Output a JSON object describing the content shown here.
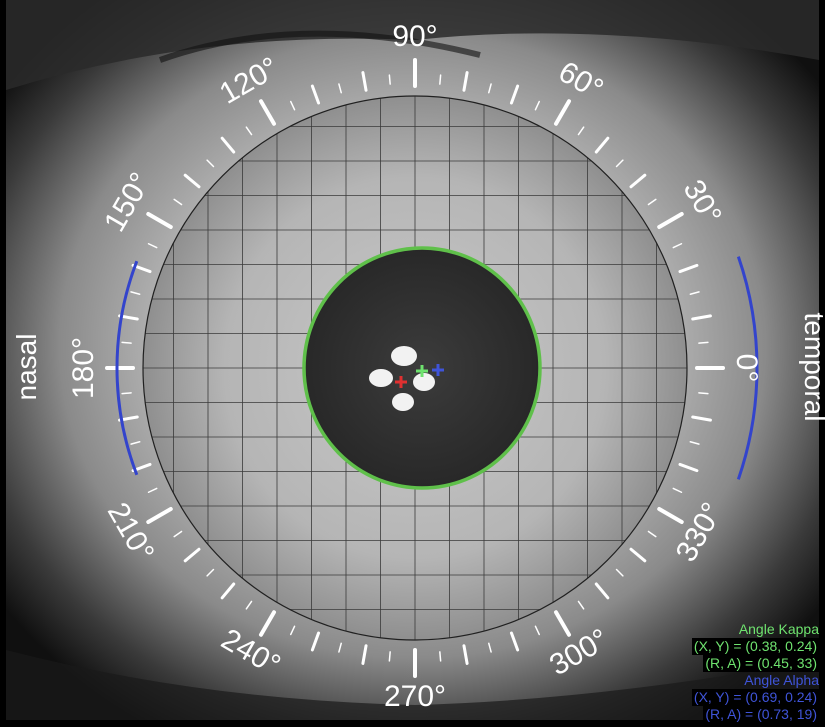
{
  "labels": {
    "nasal": "nasal",
    "temporal": "temporal"
  },
  "angle_labels": [
    "0°",
    "30°",
    "60°",
    "90°",
    "120°",
    "150°",
    "180°",
    "210°",
    "240°",
    "270°",
    "300°",
    "330°"
  ],
  "readout": {
    "kappa_title": "Angle Kappa",
    "kappa_xy": "(X, Y) = (0.38, 0.24)",
    "kappa_ra": "(R, A) = (0.45, 33)",
    "alpha_title": "Angle Alpha",
    "alpha_xy": "(X, Y) = (0.69, 0.24)",
    "alpha_ra": "(R, A) = (0.73, 19)"
  },
  "colors": {
    "kappa": "#6fe36f",
    "alpha": "#3f54d8",
    "pupil_outline": "#5fc04a",
    "marker_center": "#e03030",
    "ring_arc": "#3344cc"
  }
}
